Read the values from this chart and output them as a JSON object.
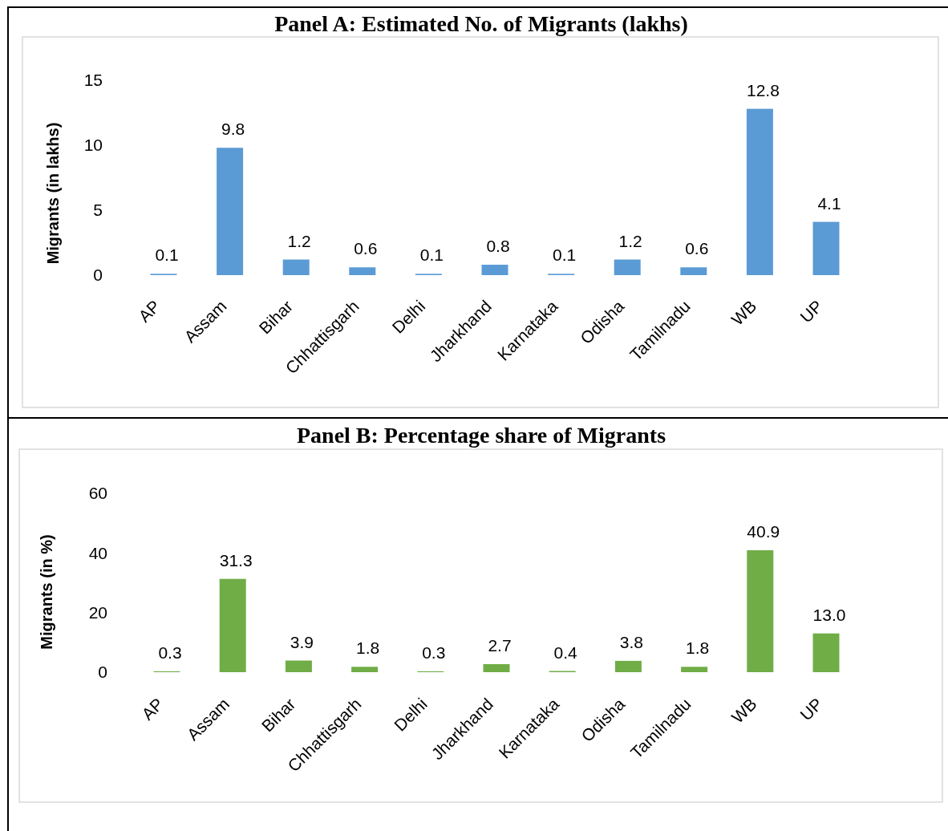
{
  "chart_data": [
    {
      "type": "bar",
      "title": "Panel A: Estimated No. of Migrants (lakhs)",
      "ylabel": "Migrants (in lakhs)",
      "categories": [
        "AP",
        "Assam",
        "Bihar",
        "Chhattisgarh",
        "Delhi",
        "Jharkhand",
        "Karnataka",
        "Odisha",
        "Tamilnadu",
        "WB",
        "UP"
      ],
      "values": [
        0.1,
        9.8,
        1.2,
        0.6,
        0.1,
        0.8,
        0.1,
        1.2,
        0.6,
        12.8,
        4.1
      ],
      "color": "#5b9bd5",
      "ylim": [
        0,
        15
      ],
      "yticks": [
        0,
        5,
        10,
        15
      ],
      "data_labels": true
    },
    {
      "type": "bar",
      "title": "Panel B: Percentage share of Migrants",
      "ylabel": "Migrants (in %)",
      "categories": [
        "AP",
        "Assam",
        "Bihar",
        "Chhattisgarh",
        "Delhi",
        "Jharkhand",
        "Karnataka",
        "Odisha",
        "Tamilnadu",
        "WB",
        "UP"
      ],
      "values": [
        0.3,
        31.3,
        3.9,
        1.8,
        0.3,
        2.7,
        0.4,
        3.8,
        1.8,
        40.9,
        13.0
      ],
      "value_labels": [
        "0.3",
        "31.3",
        "3.9",
        "1.8",
        "0.3",
        "2.7",
        "0.4",
        "3.8",
        "1.8",
        "40.9",
        "13.0"
      ],
      "color": "#70ad47",
      "ylim": [
        0,
        60
      ],
      "yticks": [
        0,
        20,
        40,
        60
      ]
    }
  ]
}
